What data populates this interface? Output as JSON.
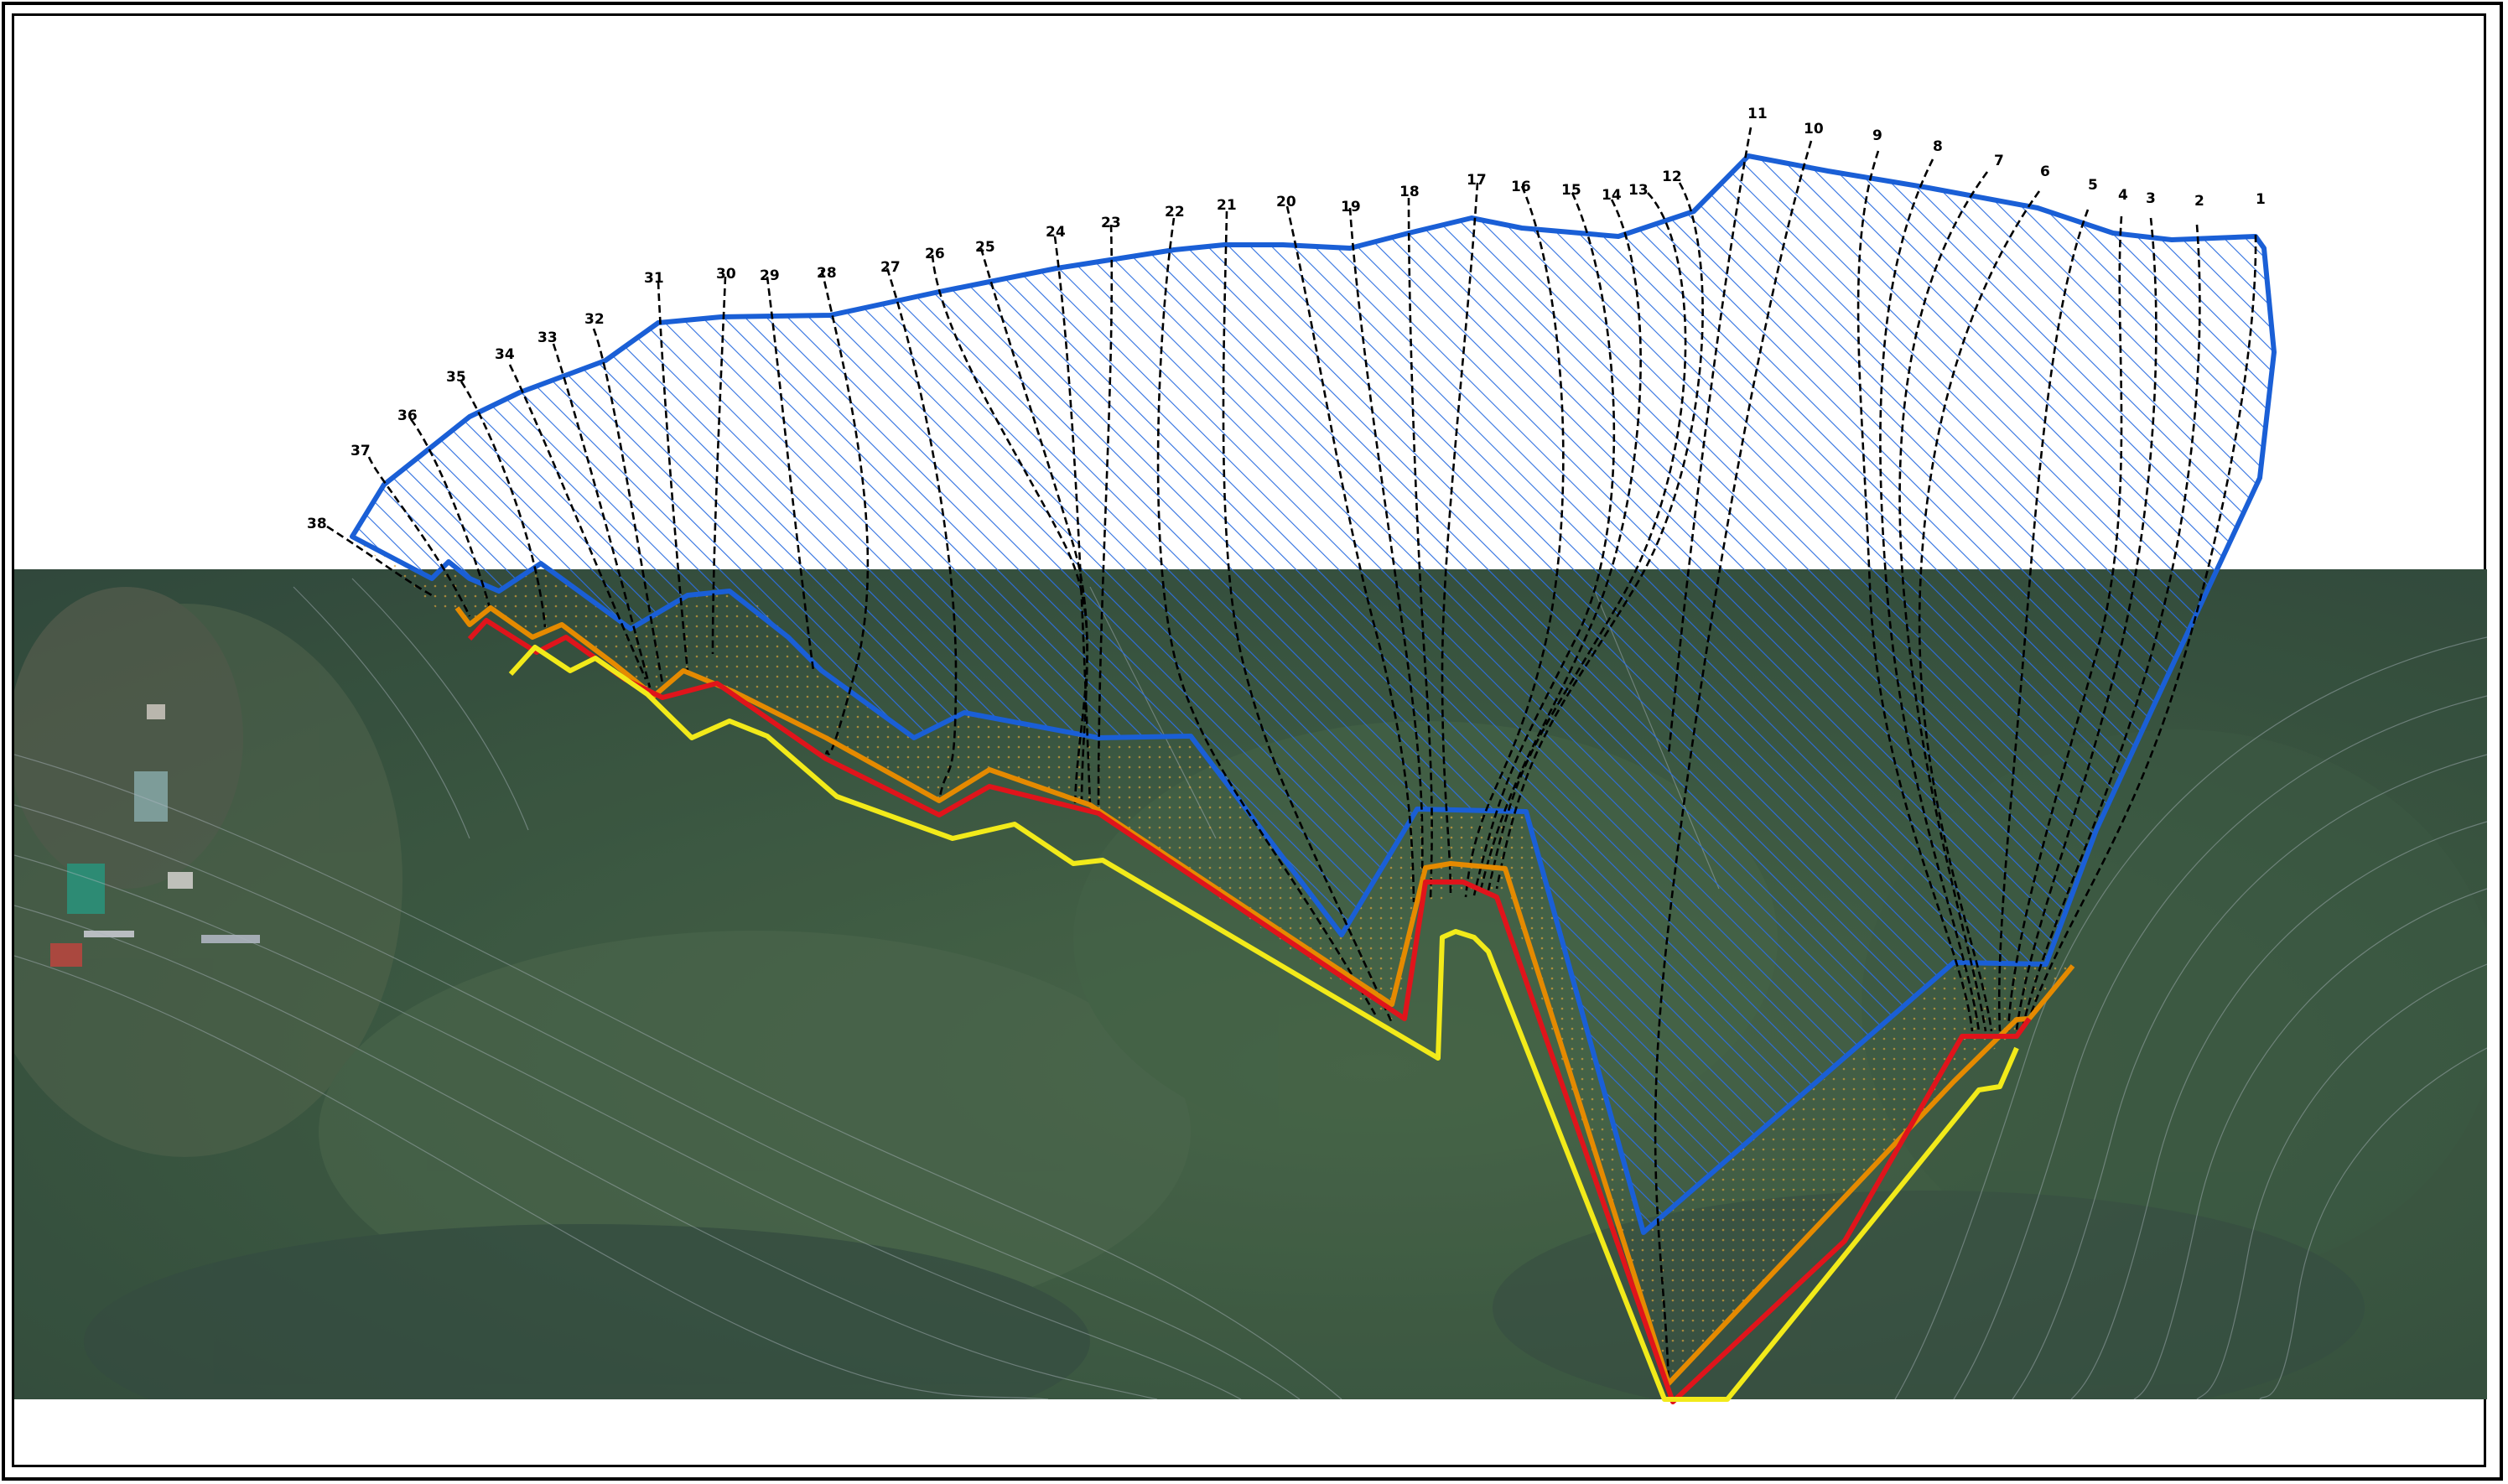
{
  "map": {
    "colors": {
      "landslide_outline": "#1a5fd6",
      "hatch": "#2e6fe0",
      "boundary_orange": "#e58a00",
      "boundary_red": "#e0141b",
      "boundary_yellow": "#f2ea1a",
      "flow_paths": "#000000",
      "frame": "#000000",
      "forest_base": "#3e5b3b",
      "overlay_dark": "#2f4056"
    },
    "path_labels": [
      "1",
      "2",
      "3",
      "4",
      "5",
      "6",
      "7",
      "8",
      "9",
      "10",
      "11",
      "12",
      "13",
      "14",
      "15",
      "16",
      "17",
      "18",
      "19",
      "20",
      "21",
      "22",
      "23",
      "24",
      "25",
      "26",
      "27",
      "28",
      "29",
      "30",
      "31",
      "32",
      "33",
      "34",
      "35",
      "36",
      "37",
      "38"
    ]
  }
}
